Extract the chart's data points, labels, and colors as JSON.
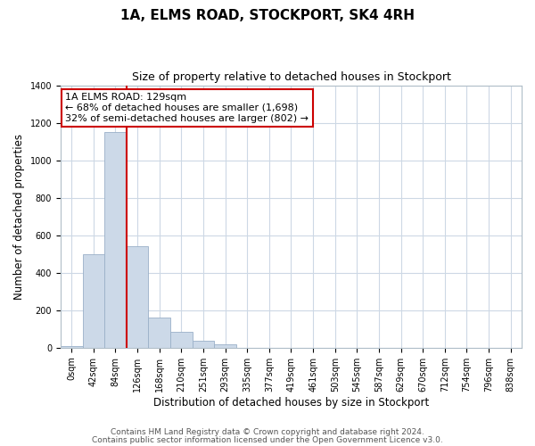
{
  "title": "1A, ELMS ROAD, STOCKPORT, SK4 4RH",
  "subtitle": "Size of property relative to detached houses in Stockport",
  "xlabel": "Distribution of detached houses by size in Stockport",
  "ylabel": "Number of detached properties",
  "bar_labels": [
    "0sqm",
    "42sqm",
    "84sqm",
    "126sqm",
    "168sqm",
    "210sqm",
    "251sqm",
    "293sqm",
    "335sqm",
    "377sqm",
    "419sqm",
    "461sqm",
    "503sqm",
    "545sqm",
    "587sqm",
    "629sqm",
    "670sqm",
    "712sqm",
    "754sqm",
    "796sqm",
    "838sqm"
  ],
  "bar_values": [
    10,
    500,
    1150,
    540,
    160,
    85,
    35,
    18,
    0,
    0,
    0,
    0,
    0,
    0,
    0,
    0,
    0,
    0,
    0,
    0,
    0
  ],
  "bar_color": "#ccd9e8",
  "bar_edge_color": "#9ab0c8",
  "vline_x_index": 3,
  "vline_color": "#cc0000",
  "annotation_line1": "1A ELMS ROAD: 129sqm",
  "annotation_line2": "← 68% of detached houses are smaller (1,698)",
  "annotation_line3": "32% of semi-detached houses are larger (802) →",
  "annotation_box_edgecolor": "#cc0000",
  "annotation_box_facecolor": "#ffffff",
  "ylim": [
    0,
    1400
  ],
  "yticks": [
    0,
    200,
    400,
    600,
    800,
    1000,
    1200,
    1400
  ],
  "footer1": "Contains HM Land Registry data © Crown copyright and database right 2024.",
  "footer2": "Contains public sector information licensed under the Open Government Licence v3.0.",
  "bg_color": "#ffffff",
  "grid_color": "#cdd8e5",
  "title_fontsize": 11,
  "subtitle_fontsize": 9,
  "axis_label_fontsize": 8.5,
  "tick_fontsize": 7,
  "footer_fontsize": 6.5
}
